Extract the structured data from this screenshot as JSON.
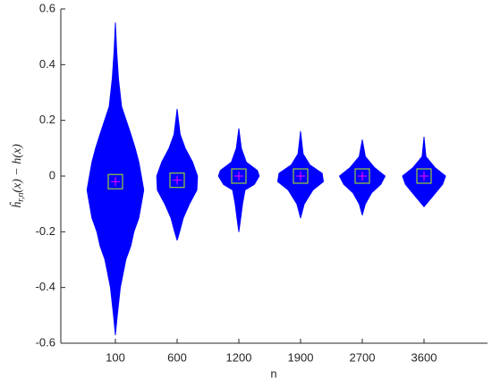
{
  "chart_data": {
    "type": "violin",
    "xlabel": "n",
    "ylabel": {
      "main": "ĥ",
      "sub": "r,n",
      "rest": "(x) − h(x)"
    },
    "categories": [
      "100",
      "600",
      "1200",
      "1900",
      "2700",
      "3600"
    ],
    "color": "#0000ff",
    "median_box_color": "#9acd32",
    "median_cross_color": "#ff00ff",
    "ylim": [
      -0.6,
      0.6
    ],
    "yticks": [
      0.6,
      0.4,
      0.2,
      0,
      -0.2,
      -0.4,
      -0.6
    ],
    "violins": [
      {
        "median": -0.02,
        "profile": {
          "y": [
            0.55,
            0.45,
            0.35,
            0.25,
            0.15,
            0.1,
            0.05,
            0,
            -0.05,
            -0.1,
            -0.15,
            -0.2,
            -0.25,
            -0.3,
            -0.4,
            -0.5,
            -0.57
          ],
          "width": [
            0,
            0.02,
            0.05,
            0.1,
            0.25,
            0.32,
            0.38,
            0.42,
            0.46,
            0.42,
            0.38,
            0.3,
            0.25,
            0.17,
            0.08,
            0.03,
            0
          ]
        }
      },
      {
        "median": -0.015,
        "profile": {
          "y": [
            0.24,
            0.15,
            0.1,
            0.05,
            0,
            -0.05,
            -0.1,
            -0.15,
            -0.2,
            -0.23
          ],
          "width": [
            0,
            0.05,
            0.13,
            0.25,
            0.33,
            0.32,
            0.2,
            0.1,
            0.04,
            0
          ]
        }
      },
      {
        "median": 0,
        "profile": {
          "y": [
            0.17,
            0.1,
            0.05,
            0.02,
            0,
            -0.03,
            -0.05,
            -0.1,
            -0.15,
            -0.2
          ],
          "width": [
            0,
            0.04,
            0.12,
            0.3,
            0.33,
            0.25,
            0.1,
            0.06,
            0.03,
            0
          ]
        }
      },
      {
        "median": 0,
        "profile": {
          "y": [
            0.16,
            0.08,
            0.04,
            0.01,
            -0.02,
            -0.05,
            -0.1,
            -0.15
          ],
          "width": [
            0,
            0.04,
            0.15,
            0.35,
            0.37,
            0.2,
            0.06,
            0
          ]
        }
      },
      {
        "median": 0,
        "profile": {
          "y": [
            0.13,
            0.07,
            0.03,
            0,
            -0.03,
            -0.06,
            -0.1,
            -0.14
          ],
          "width": [
            0,
            0.05,
            0.2,
            0.37,
            0.3,
            0.15,
            0.05,
            0
          ]
        }
      },
      {
        "median": 0,
        "profile": {
          "y": [
            0.14,
            0.07,
            0.03,
            0,
            -0.03,
            -0.07,
            -0.11
          ],
          "width": [
            0,
            0.03,
            0.18,
            0.35,
            0.3,
            0.15,
            0
          ]
        }
      }
    ]
  }
}
